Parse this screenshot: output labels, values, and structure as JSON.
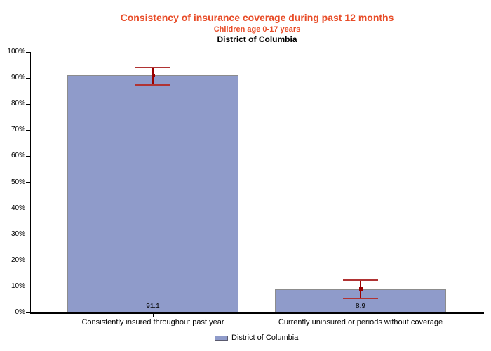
{
  "header": {
    "title": "Consistency of insurance coverage during past 12 months",
    "subtitle": "Children age 0-17 years",
    "region": "District of Columbia"
  },
  "colors": {
    "title_accent": "#E84C28",
    "bar_fill": "#8F9BCA",
    "bar_border": "#8C8C8C",
    "error_line": "#990000",
    "error_cap": "#B03333",
    "axis": "#000000"
  },
  "legend": {
    "label": "District of Columbia"
  },
  "chart_data": {
    "type": "bar",
    "title": "Consistency of insurance coverage during past 12 months",
    "subtitle": "Children age 0-17 years",
    "region_line": "District of Columbia",
    "categories": [
      "Consistently insured throughout past year",
      "Currently uninsured or periods without coverage"
    ],
    "series": [
      {
        "name": "District of Columbia",
        "values": [
          91.1,
          8.9
        ],
        "value_labels": [
          "91.1",
          "8.9"
        ],
        "ci_low": [
          87.3,
          5.4
        ],
        "ci_high": [
          94.0,
          12.4
        ]
      }
    ],
    "xlabel": "",
    "ylabel": "",
    "ylim": [
      0,
      100
    ],
    "ytick_step": 10,
    "ytick_labels": [
      "0%",
      "10%",
      "20%",
      "30%",
      "40%",
      "50%",
      "60%",
      "70%",
      "80%",
      "90%",
      "100%"
    ],
    "grid": false,
    "error_bars": true,
    "legend_position": "bottom-center"
  }
}
